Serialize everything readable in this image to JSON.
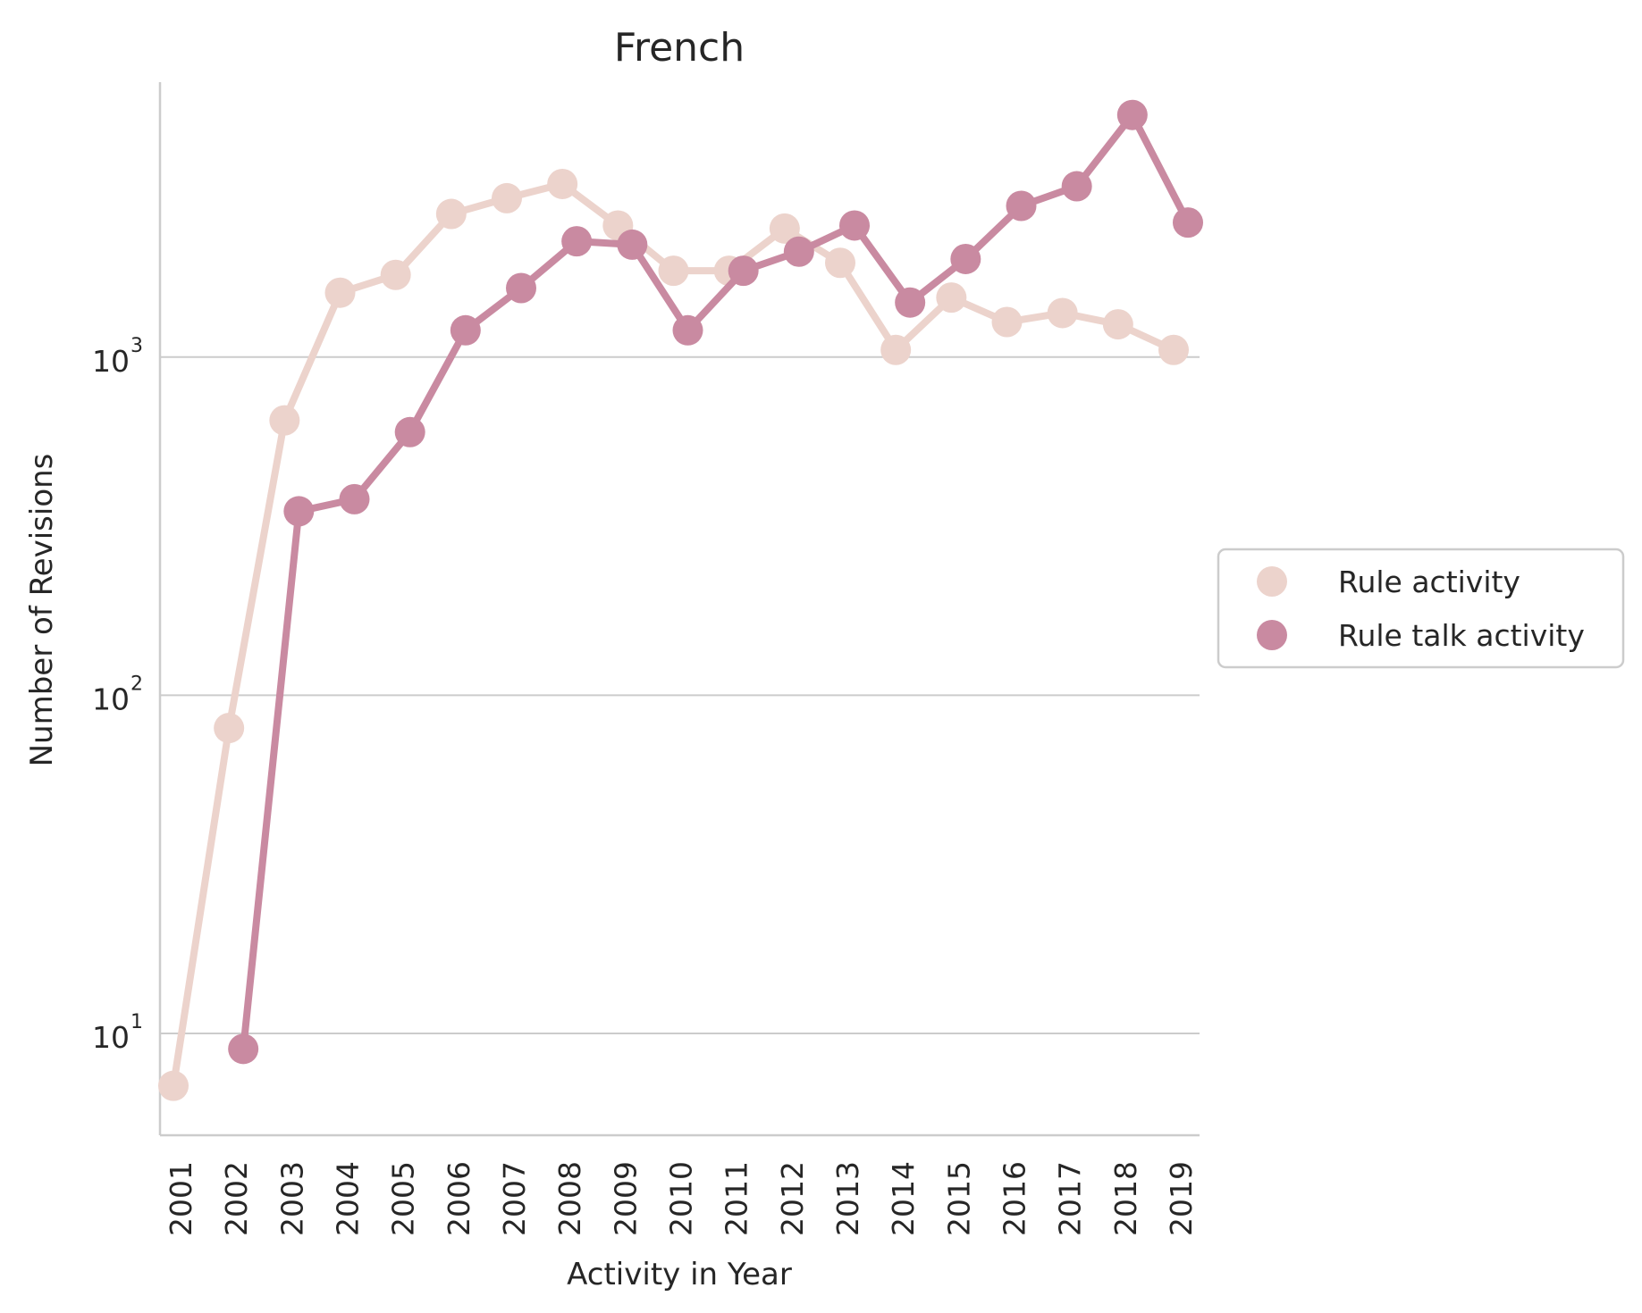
{
  "chart_data": {
    "type": "line",
    "title": "French",
    "xlabel": "Activity in Year",
    "ylabel": "Number of Revisions",
    "yscale": "log",
    "ylim": [
      5,
      6500
    ],
    "yticks": [
      {
        "base": "10",
        "exp": "1",
        "value": 10
      },
      {
        "base": "10",
        "exp": "2",
        "value": 100
      },
      {
        "base": "10",
        "exp": "3",
        "value": 1000
      }
    ],
    "grid": "horizontal",
    "legend_position": "right",
    "categories": [
      "2001",
      "2002",
      "2003",
      "2004",
      "2005",
      "2006",
      "2007",
      "2008",
      "2009",
      "2010",
      "2011",
      "2012",
      "2013",
      "2014",
      "2015",
      "2016",
      "2017",
      "2018",
      "2019"
    ],
    "series": [
      {
        "name": "Rule activity",
        "color": "#ecd3cc",
        "values": [
          7,
          80,
          650,
          1550,
          1750,
          2650,
          2950,
          3250,
          2450,
          1800,
          1800,
          2400,
          1900,
          1050,
          1500,
          1270,
          1350,
          1250,
          1050
        ]
      },
      {
        "name": "Rule talk activity",
        "color": "#c98aa1",
        "values": [
          null,
          9,
          350,
          380,
          600,
          1200,
          1600,
          2200,
          2150,
          1200,
          1800,
          2050,
          2450,
          1450,
          1950,
          2800,
          3200,
          5200,
          2500
        ]
      }
    ]
  }
}
